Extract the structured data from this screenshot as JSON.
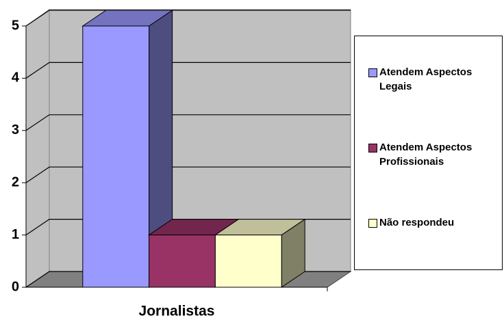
{
  "chart_data": {
    "type": "bar3d",
    "categories": [
      "Jornalistas"
    ],
    "series": [
      {
        "name": "Atendem Aspectos Legais",
        "color": "#9999ff",
        "values": [
          5
        ]
      },
      {
        "name": "Atendem Aspectos Profissionais",
        "color": "#993366",
        "values": [
          1
        ]
      },
      {
        "name": "Não respondeu",
        "color": "#ffffcc",
        "values": [
          1
        ]
      }
    ],
    "ylim": [
      0,
      5
    ],
    "yticks": [
      0,
      1,
      2,
      3,
      4,
      5
    ],
    "grid": true,
    "legend": "right"
  }
}
